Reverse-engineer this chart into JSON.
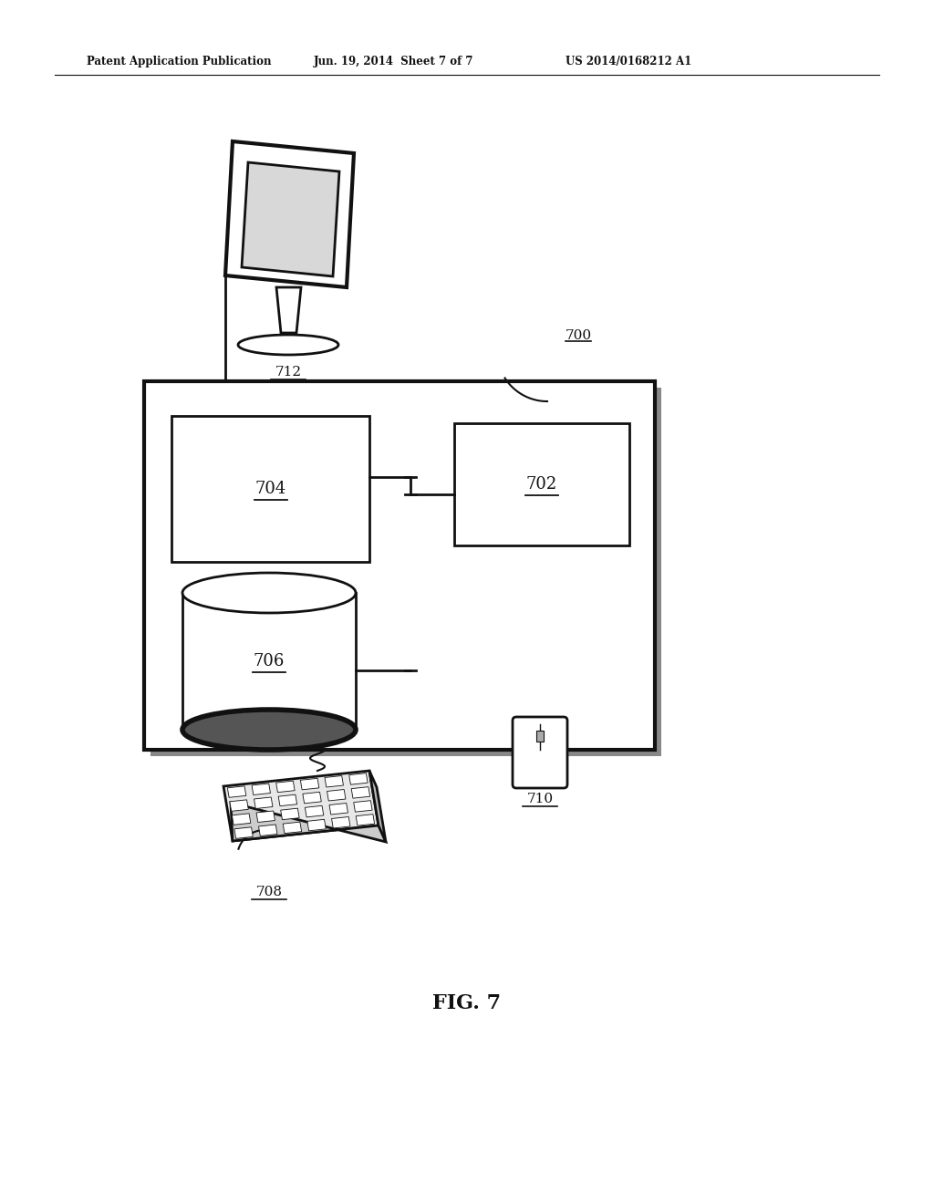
{
  "bg_color": "#ffffff",
  "line_color": "#111111",
  "header_left": "Patent Application Publication",
  "header_mid": "Jun. 19, 2014  Sheet 7 of 7",
  "header_right": "US 2014/0168212 A1",
  "fig_label": "FIG. 7",
  "figsize": [
    10.24,
    13.2
  ],
  "dpi": 100
}
